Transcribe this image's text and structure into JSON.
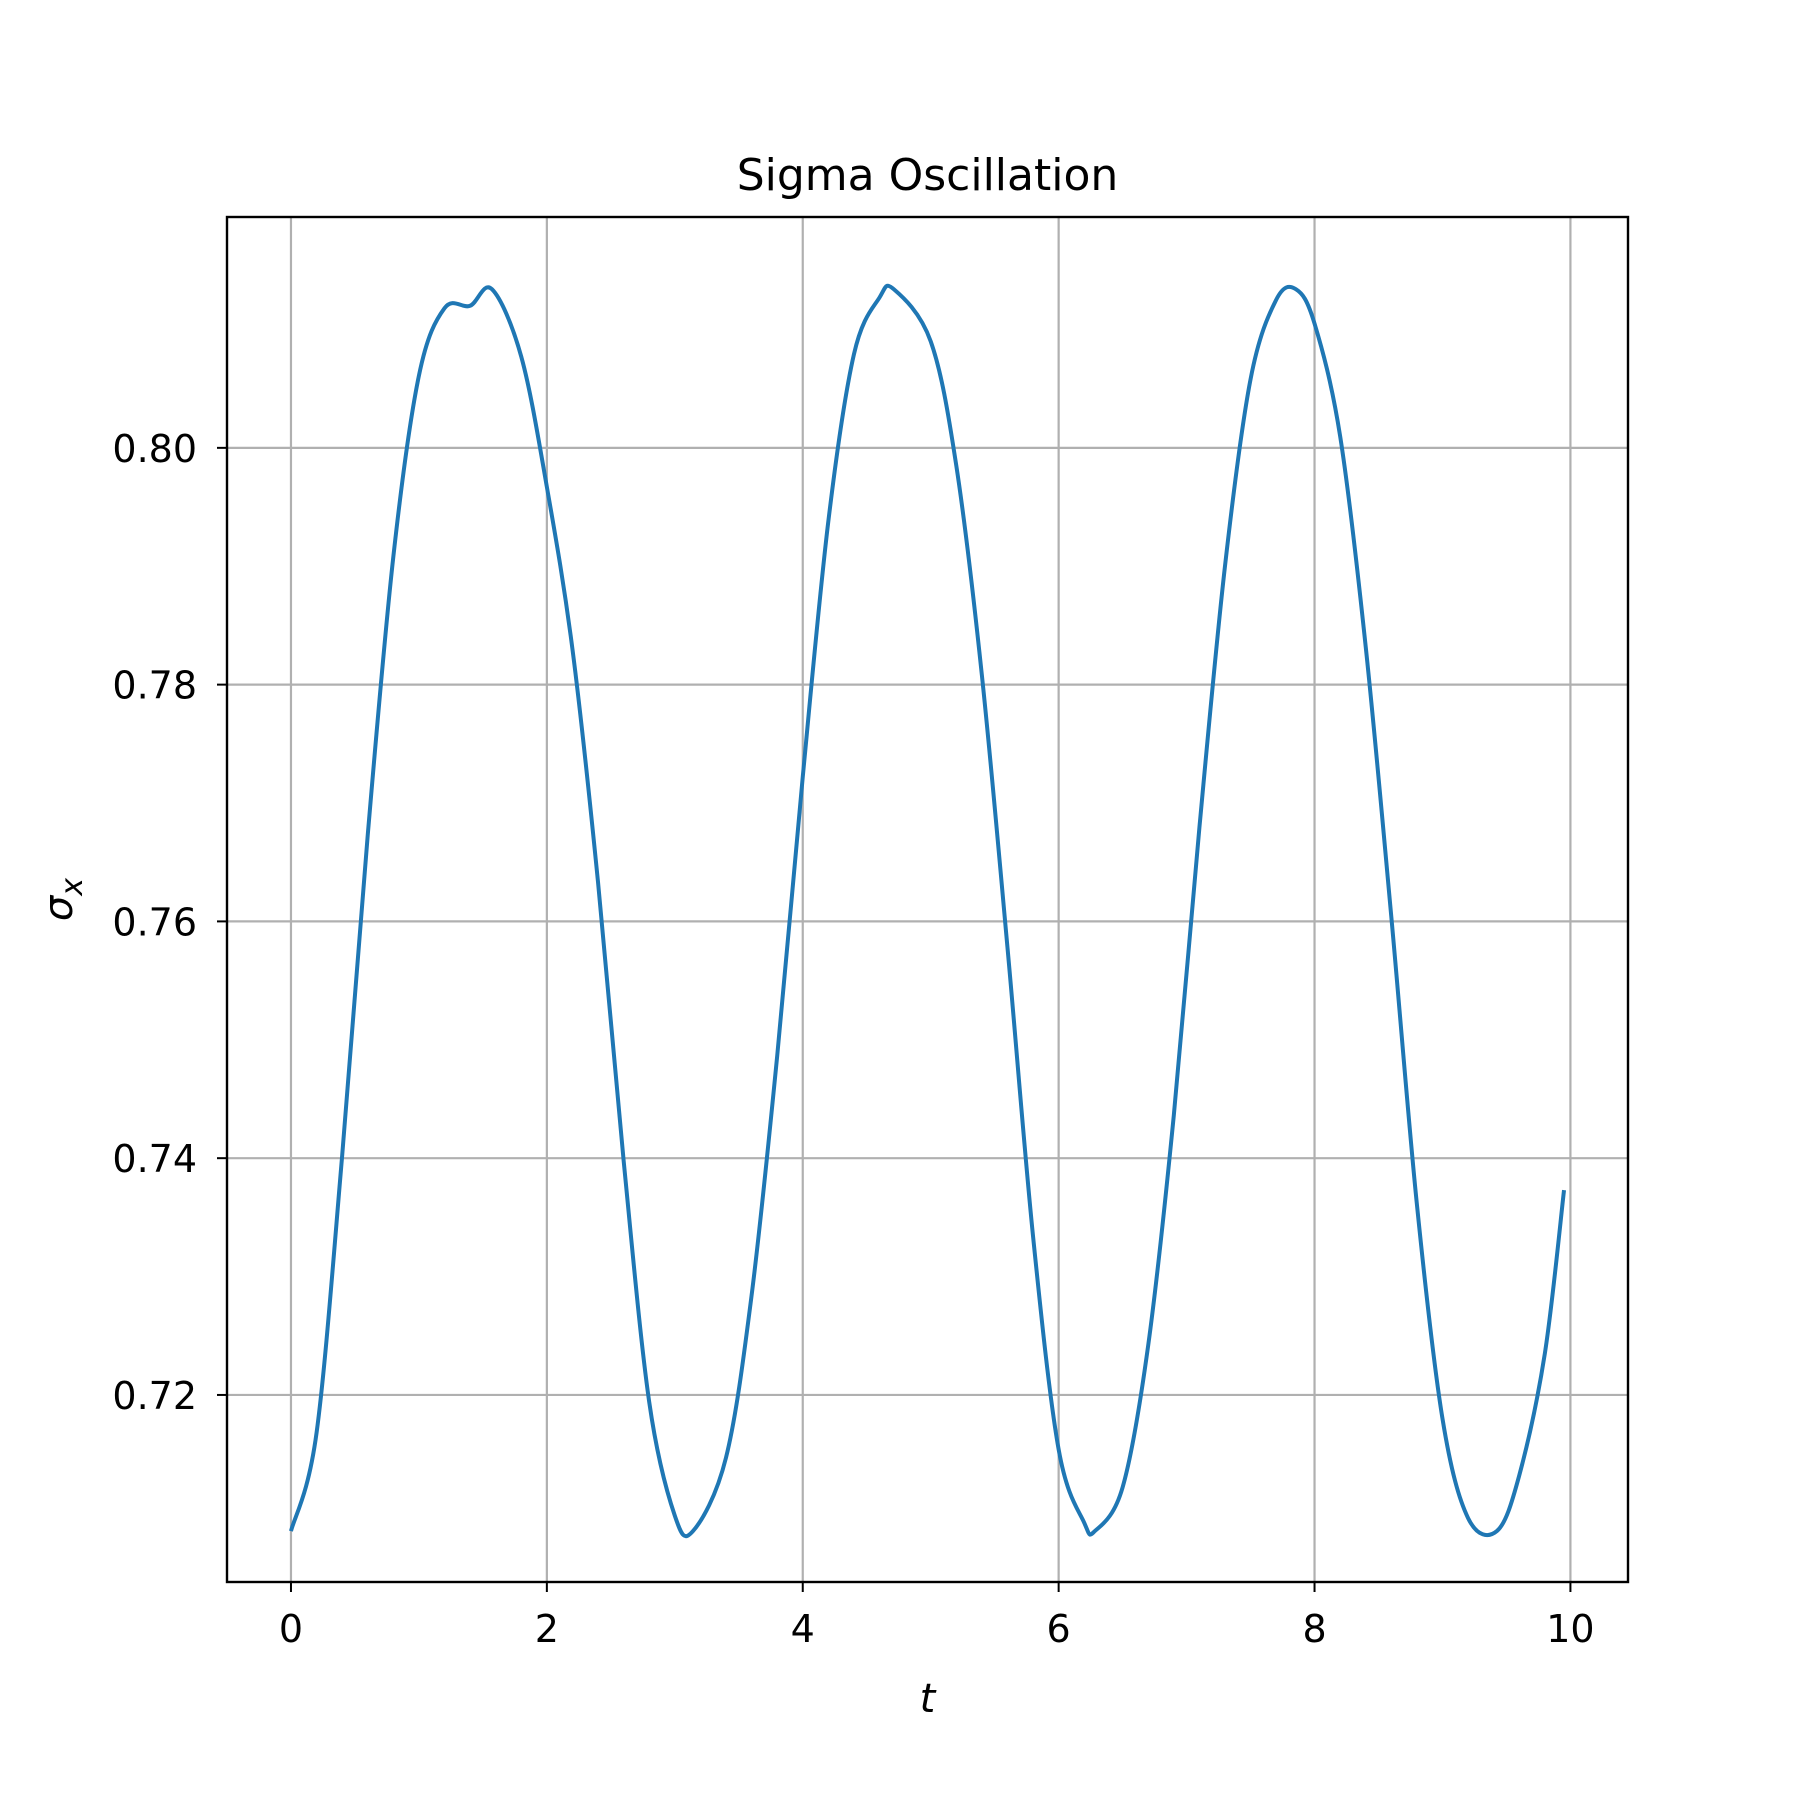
{
  "chart_data": {
    "type": "line",
    "title": "Sigma Oscillation",
    "xlabel": "t",
    "ylabel_base": "σ",
    "ylabel_sub": "x",
    "xlim": [
      -0.5,
      10.45
    ],
    "ylim": [
      0.7042,
      0.8195
    ],
    "xticks": [
      0,
      2,
      4,
      6,
      8,
      10
    ],
    "xtick_labels": [
      "0",
      "2",
      "4",
      "6",
      "8",
      "10"
    ],
    "yticks": [
      0.72,
      0.74,
      0.76,
      0.78,
      0.8
    ],
    "ytick_labels": [
      "0.72",
      "0.74",
      "0.76",
      "0.78",
      "0.80"
    ],
    "grid": true,
    "series": [
      {
        "color": "#1f77b4",
        "x": [
          0.0,
          0.2,
          0.4,
          0.6,
          0.8,
          1.0,
          1.2,
          1.4,
          1.571,
          1.8,
          2.0,
          2.2,
          2.4,
          2.6,
          2.8,
          3.0,
          3.142,
          3.4,
          3.6,
          3.8,
          4.0,
          4.2,
          4.4,
          4.6,
          4.712,
          5.0,
          5.2,
          5.4,
          5.6,
          5.8,
          6.0,
          6.2,
          6.283,
          6.5,
          6.7,
          6.9,
          7.1,
          7.3,
          7.5,
          7.7,
          7.854,
          8.0,
          8.2,
          8.4,
          8.6,
          8.8,
          9.0,
          9.2,
          9.425,
          9.6,
          9.8,
          9.95
        ],
        "y": [
          0.7085,
          0.7168,
          0.7402,
          0.7673,
          0.7908,
          0.8061,
          0.8118,
          0.812,
          0.8134,
          0.8077,
          0.7967,
          0.783,
          0.7633,
          0.7398,
          0.7194,
          0.7098,
          0.7085,
          0.7147,
          0.7284,
          0.7486,
          0.7722,
          0.7938,
          0.8079,
          0.8127,
          0.8134,
          0.809,
          0.7985,
          0.7808,
          0.7578,
          0.7334,
          0.7154,
          0.7092,
          0.7085,
          0.7122,
          0.7242,
          0.7436,
          0.7679,
          0.79,
          0.8058,
          0.8125,
          0.8134,
          0.8105,
          0.801,
          0.7832,
          0.7604,
          0.7361,
          0.718,
          0.7096,
          0.7085,
          0.7132,
          0.7235,
          0.7373
        ]
      }
    ]
  }
}
